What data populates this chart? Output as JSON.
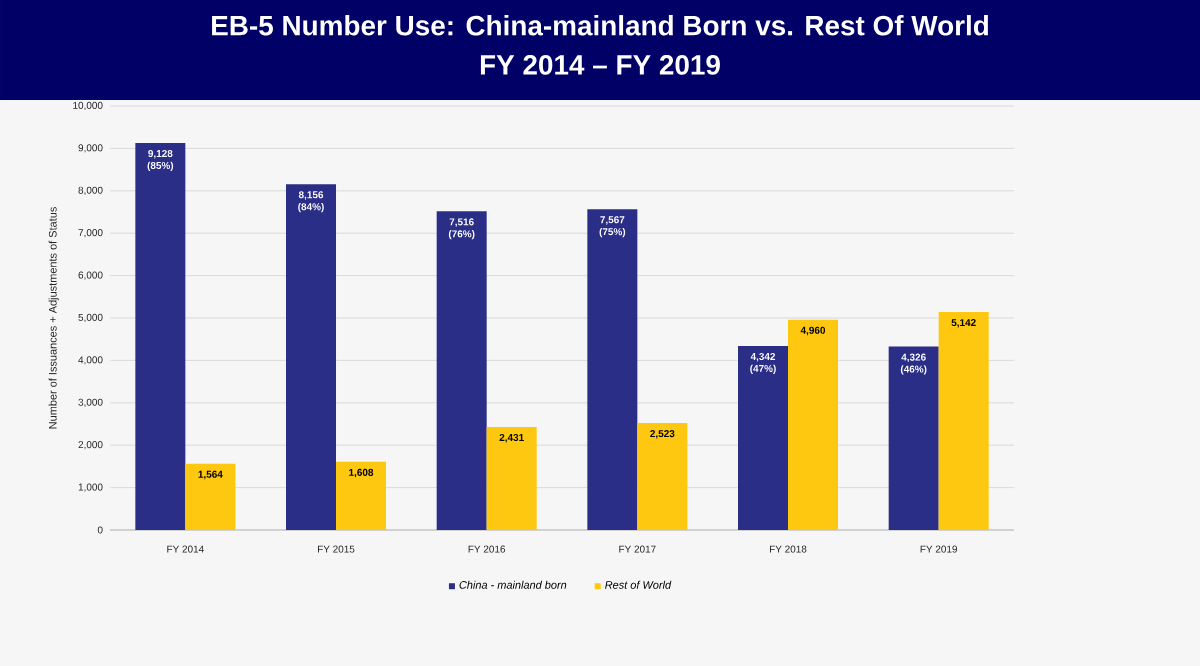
{
  "chart_data": {
    "type": "bar",
    "title": "EB-5 Number Use: China-mainland Born vs. Rest Of World",
    "subtitle": "FY 2014 – FY 2019",
    "ylabel": "Number of Issuances + Adjustments of Status",
    "categories": [
      "FY 2014",
      "FY 2015",
      "FY 2016",
      "FY 2017",
      "FY 2018",
      "FY 2019"
    ],
    "series": [
      {
        "name": "China - mainland born",
        "color": "#2b2e86",
        "values": [
          9128,
          8156,
          7516,
          7567,
          4342,
          4326
        ],
        "value_labels": [
          "9,128 (85%)",
          "8,156 (84%)",
          "7,516 (76%)",
          "7,567 (75%)",
          "4,342 (47%)",
          "4,326 (46%)"
        ]
      },
      {
        "name": "Rest of World",
        "color": "#fdc80f",
        "values": [
          1564,
          1608,
          2431,
          2523,
          4960,
          5142
        ],
        "value_labels": [
          "1,564",
          "1,608",
          "2,431",
          "2,523",
          "4,960",
          "5,142"
        ]
      }
    ],
    "ylim": [
      0,
      10000
    ],
    "yticks": [
      {
        "value": 0,
        "label": "0"
      },
      {
        "value": 1000,
        "label": "1,000"
      },
      {
        "value": 2000,
        "label": "2,000"
      },
      {
        "value": 3000,
        "label": "3,000"
      },
      {
        "value": 4000,
        "label": "4,000"
      },
      {
        "value": 5000,
        "label": "5,000"
      },
      {
        "value": 6000,
        "label": "6,000"
      },
      {
        "value": 7000,
        "label": "7,000"
      },
      {
        "value": 8000,
        "label": "8,000"
      },
      {
        "value": 9000,
        "label": "9,000"
      },
      {
        "value": 10000,
        "label": "10,000"
      }
    ],
    "grid": "y",
    "legend": "bottom"
  }
}
